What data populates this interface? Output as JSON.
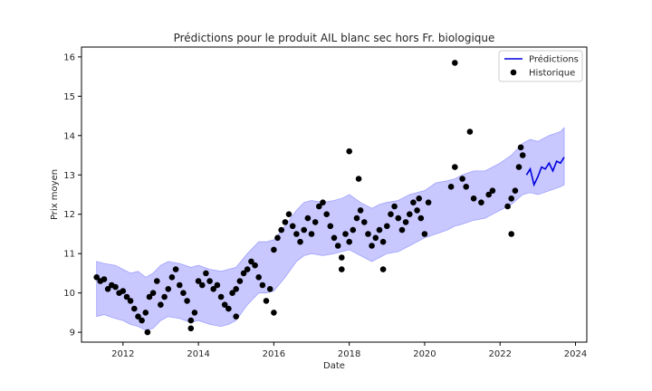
{
  "chart_data": {
    "type": "scatter",
    "title": "Prédictions pour le produit AIL blanc sec hors Fr. biologique",
    "xlabel": "Date",
    "ylabel": "Prix moyen",
    "xlim": [
      2010.9,
      2024.3
    ],
    "ylim": [
      8.75,
      16.25
    ],
    "xticks": [
      2012,
      2014,
      2016,
      2018,
      2020,
      2022,
      2024
    ],
    "yticks": [
      9,
      10,
      11,
      12,
      13,
      14,
      15,
      16
    ],
    "legend": {
      "position": "top-right",
      "entries": [
        {
          "label": "Prédictions",
          "kind": "line",
          "color": "#0000dd"
        },
        {
          "label": "Historique",
          "kind": "marker",
          "color": "#000000"
        }
      ]
    },
    "colors": {
      "band": "#c8c8ff",
      "band_edge": "#a0a0ff",
      "prediction": "#0000dd",
      "points": "#000000"
    },
    "band": {
      "x": [
        2011.3,
        2011.5,
        2011.8,
        2012.0,
        2012.2,
        2012.4,
        2012.6,
        2012.8,
        2013.0,
        2013.2,
        2013.5,
        2013.8,
        2014.0,
        2014.3,
        2014.6,
        2014.8,
        2015.0,
        2015.3,
        2015.6,
        2015.8,
        2016.0,
        2016.3,
        2016.6,
        2016.8,
        2017.0,
        2017.3,
        2017.6,
        2017.8,
        2018.0,
        2018.3,
        2018.6,
        2018.8,
        2019.0,
        2019.3,
        2019.6,
        2019.8,
        2020.0,
        2020.3,
        2020.6,
        2020.8,
        2021.0,
        2021.3,
        2021.6,
        2021.8,
        2022.0,
        2022.3,
        2022.6,
        2022.8,
        2023.0,
        2023.3,
        2023.6,
        2023.7
      ],
      "upper": [
        10.8,
        10.75,
        10.7,
        10.6,
        10.5,
        10.55,
        10.4,
        10.5,
        10.7,
        10.8,
        10.75,
        10.65,
        10.7,
        10.6,
        10.55,
        10.6,
        10.65,
        11.0,
        11.3,
        11.3,
        11.35,
        11.7,
        12.1,
        12.3,
        12.35,
        12.3,
        12.35,
        12.4,
        12.5,
        12.3,
        12.15,
        12.25,
        12.3,
        12.35,
        12.5,
        12.55,
        12.6,
        12.8,
        12.85,
        12.9,
        13.0,
        13.1,
        13.1,
        13.2,
        13.3,
        13.5,
        13.8,
        13.9,
        13.85,
        14.0,
        14.1,
        14.2
      ],
      "lower": [
        9.4,
        9.45,
        9.35,
        9.3,
        9.2,
        9.15,
        9.05,
        9.1,
        9.3,
        9.4,
        9.35,
        9.25,
        9.3,
        9.2,
        9.15,
        9.2,
        9.3,
        9.7,
        10.0,
        10.0,
        10.05,
        10.4,
        10.8,
        10.95,
        11.0,
        10.95,
        11.0,
        11.05,
        11.1,
        10.95,
        10.8,
        10.9,
        11.0,
        11.05,
        11.2,
        11.3,
        11.4,
        11.5,
        11.6,
        11.7,
        11.75,
        11.85,
        11.9,
        12.0,
        12.1,
        12.25,
        12.5,
        12.55,
        12.5,
        12.6,
        12.7,
        12.75
      ]
    },
    "series": [
      {
        "name": "Prédictions",
        "kind": "line",
        "x": [
          2022.7,
          2022.8,
          2022.9,
          2023.0,
          2023.1,
          2023.2,
          2023.3,
          2023.4,
          2023.5,
          2023.6,
          2023.7
        ],
        "values": [
          13.0,
          13.15,
          12.75,
          12.95,
          13.2,
          13.15,
          13.3,
          13.1,
          13.35,
          13.3,
          13.45
        ]
      },
      {
        "name": "Historique",
        "kind": "scatter",
        "x": [
          2011.3,
          2011.4,
          2011.5,
          2011.6,
          2011.7,
          2011.8,
          2011.9,
          2012.0,
          2012.1,
          2012.2,
          2012.3,
          2012.4,
          2012.5,
          2012.6,
          2012.7,
          2012.8,
          2012.9,
          2013.0,
          2013.1,
          2013.2,
          2013.3,
          2013.4,
          2013.5,
          2013.6,
          2013.7,
          2013.8,
          2013.9,
          2014.0,
          2014.1,
          2014.2,
          2014.3,
          2014.4,
          2014.5,
          2014.6,
          2014.7,
          2014.8,
          2014.9,
          2015.0,
          2015.1,
          2015.2,
          2015.3,
          2015.4,
          2015.5,
          2015.6,
          2015.7,
          2015.8,
          2015.9,
          2016.0,
          2016.1,
          2016.2,
          2016.3,
          2016.4,
          2016.5,
          2016.6,
          2016.7,
          2016.8,
          2016.9,
          2017.0,
          2017.1,
          2017.2,
          2017.3,
          2017.4,
          2017.5,
          2017.6,
          2017.7,
          2017.8,
          2017.9,
          2018.0,
          2018.1,
          2018.2,
          2018.3,
          2018.4,
          2018.5,
          2018.6,
          2018.7,
          2018.8,
          2018.9,
          2019.0,
          2019.1,
          2019.2,
          2019.3,
          2019.4,
          2019.5,
          2019.6,
          2019.7,
          2019.8,
          2019.9,
          2020.0,
          2020.1,
          2020.7,
          2020.8,
          2021.0,
          2021.1,
          2021.3,
          2021.5,
          2021.7,
          2021.8,
          2022.2,
          2022.3,
          2022.4,
          2022.5,
          2022.6,
          2012.65,
          2013.8,
          2015.0,
          2016.0,
          2017.8,
          2018.0,
          2018.25,
          2018.9,
          2019.85,
          2020.8,
          2021.2,
          2022.3,
          2022.55
        ],
        "values": [
          10.4,
          10.3,
          10.35,
          10.1,
          10.2,
          10.15,
          10.0,
          10.05,
          9.9,
          9.8,
          9.6,
          9.4,
          9.3,
          9.5,
          9.9,
          10.0,
          10.3,
          9.7,
          9.9,
          10.1,
          10.4,
          10.6,
          10.2,
          10.0,
          9.8,
          9.3,
          9.5,
          10.3,
          10.2,
          10.5,
          10.3,
          10.1,
          10.2,
          9.9,
          9.7,
          9.6,
          10.0,
          10.1,
          10.3,
          10.5,
          10.6,
          10.8,
          10.7,
          10.4,
          10.2,
          9.8,
          10.1,
          11.1,
          11.4,
          11.6,
          11.8,
          12.0,
          11.7,
          11.5,
          11.3,
          11.6,
          11.9,
          11.5,
          11.8,
          12.2,
          12.3,
          12.0,
          11.7,
          11.4,
          11.2,
          10.9,
          11.5,
          11.3,
          11.6,
          11.9,
          12.1,
          11.8,
          11.5,
          11.2,
          11.4,
          11.6,
          11.3,
          11.7,
          12.0,
          12.2,
          11.9,
          11.6,
          11.8,
          12.0,
          12.3,
          12.1,
          11.9,
          11.5,
          12.3,
          12.7,
          13.2,
          12.9,
          12.7,
          12.4,
          12.3,
          12.5,
          12.6,
          12.2,
          11.5,
          12.6,
          13.2,
          13.5,
          9.0,
          9.1,
          9.4,
          9.5,
          10.6,
          13.6,
          12.9,
          10.6,
          12.4,
          15.85,
          14.1,
          12.4,
          13.7
        ]
      }
    ]
  }
}
